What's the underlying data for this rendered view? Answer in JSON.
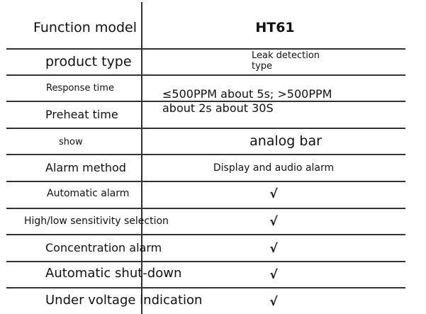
{
  "header": {
    "label": "Function model",
    "model": "HT61"
  },
  "rows": [
    {
      "label": "product type",
      "value": "Leak detection\ntype"
    },
    {
      "label": "Response time",
      "value": "≤500PPM about 5s; >500PPM"
    },
    {
      "label": "Preheat time",
      "value": "about 2s about 30S"
    },
    {
      "label": "show",
      "value": "analog bar"
    },
    {
      "label": "Alarm method",
      "value": "Display and audio alarm"
    },
    {
      "label": "Automatic alarm",
      "value": "√"
    },
    {
      "label": "High/low sensitivity selection",
      "value": "√"
    },
    {
      "label": "Concentration alarm",
      "value": "√"
    },
    {
      "label": "Automatic shut-down",
      "value": "√"
    },
    {
      "label": "Under voltage indication",
      "value": "√"
    }
  ]
}
